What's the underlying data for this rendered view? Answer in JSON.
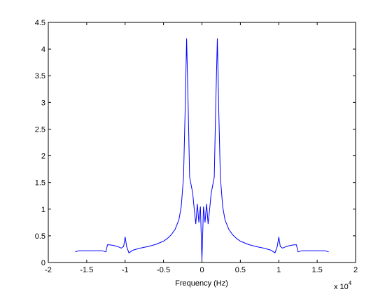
{
  "chart_data": {
    "type": "line",
    "title": "",
    "xlabel": "Frequency (Hz)",
    "ylabel": "",
    "x_multiplier_label": {
      "base": "x 10",
      "exponent": "4"
    },
    "xlim": [
      -2,
      2
    ],
    "ylim": [
      0,
      4.5
    ],
    "x_ticks": [
      -2,
      -1.5,
      -1,
      -0.5,
      0,
      0.5,
      1,
      1.5,
      2
    ],
    "x_tick_labels": [
      "-2",
      "-1.5",
      "-1",
      "-0.5",
      "0",
      "0.5",
      "1",
      "1.5",
      "2"
    ],
    "y_ticks": [
      0,
      0.5,
      1,
      1.5,
      2,
      2.5,
      3,
      3.5,
      4,
      4.5
    ],
    "y_tick_labels": [
      "0",
      "0.5",
      "1",
      "1.5",
      "2",
      "2.5",
      "3",
      "3.5",
      "4",
      "4.5"
    ],
    "grid": false,
    "line_color": "#0000ff",
    "series": [
      {
        "x": [
          -1.65,
          -1.6,
          -1.5,
          -1.4,
          -1.3,
          -1.25,
          -1.23,
          -1.2,
          -1.15,
          -1.1,
          -1.05,
          -1.02,
          -1.0,
          -0.98,
          -0.95,
          -0.9,
          -0.85,
          -0.8,
          -0.7,
          -0.6,
          -0.5,
          -0.45,
          -0.4,
          -0.35,
          -0.3,
          -0.27,
          -0.24,
          -0.22,
          -0.2,
          -0.18,
          -0.16,
          -0.14,
          -0.12,
          -0.1,
          -0.08,
          -0.06,
          -0.04,
          -0.02,
          0.0,
          0.02,
          0.04,
          0.06,
          0.08,
          0.1,
          0.12,
          0.14,
          0.16,
          0.18,
          0.2,
          0.22,
          0.24,
          0.27,
          0.3,
          0.35,
          0.4,
          0.45,
          0.5,
          0.6,
          0.7,
          0.8,
          0.85,
          0.9,
          0.95,
          0.98,
          1.0,
          1.02,
          1.05,
          1.1,
          1.15,
          1.2,
          1.23,
          1.25,
          1.3,
          1.4,
          1.5,
          1.6,
          1.65
        ],
        "y": [
          0.2,
          0.22,
          0.22,
          0.22,
          0.22,
          0.2,
          0.33,
          0.33,
          0.32,
          0.3,
          0.27,
          0.3,
          0.48,
          0.3,
          0.18,
          0.23,
          0.25,
          0.27,
          0.3,
          0.34,
          0.4,
          0.45,
          0.52,
          0.62,
          0.8,
          1.05,
          1.6,
          2.8,
          4.2,
          3.0,
          1.6,
          1.45,
          1.3,
          1.0,
          0.72,
          1.1,
          0.75,
          1.05,
          0.05,
          1.05,
          0.75,
          1.1,
          0.72,
          1.0,
          1.3,
          1.45,
          1.6,
          3.0,
          4.2,
          2.8,
          1.6,
          1.05,
          0.8,
          0.62,
          0.52,
          0.45,
          0.4,
          0.34,
          0.3,
          0.27,
          0.25,
          0.23,
          0.18,
          0.3,
          0.48,
          0.3,
          0.27,
          0.3,
          0.32,
          0.33,
          0.33,
          0.2,
          0.22,
          0.22,
          0.22,
          0.22,
          0.2
        ]
      }
    ]
  }
}
